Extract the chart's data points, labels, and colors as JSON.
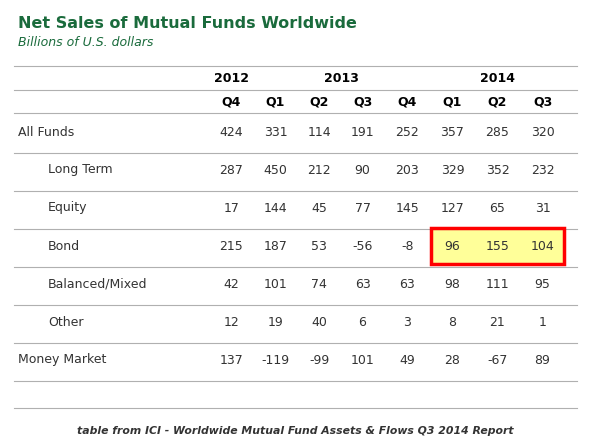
{
  "title": "Net Sales of Mutual Funds Worldwide",
  "subtitle": "Billions of U.S. dollars",
  "title_color": "#1a6b3c",
  "subtitle_color": "#1a6b3c",
  "footer": "table from ICI - Worldwide Mutual Fund Assets & Flows Q3 2014 Report",
  "quarter_headers": [
    "Q4",
    "Q1",
    "Q2",
    "Q3",
    "Q4",
    "Q1",
    "Q2",
    "Q3"
  ],
  "rows": [
    {
      "label": "All Funds",
      "indent": false,
      "values": [
        424,
        331,
        114,
        191,
        252,
        357,
        285,
        320
      ]
    },
    {
      "label": "Long Term",
      "indent": true,
      "values": [
        287,
        450,
        212,
        90,
        203,
        329,
        352,
        232
      ]
    },
    {
      "label": "Equity",
      "indent": true,
      "values": [
        17,
        144,
        45,
        77,
        145,
        127,
        65,
        31
      ]
    },
    {
      "label": "Bond",
      "indent": true,
      "values": [
        215,
        187,
        53,
        -56,
        -8,
        96,
        155,
        104
      ],
      "highlight_cols": [
        5,
        6,
        7
      ]
    },
    {
      "label": "Balanced/Mixed",
      "indent": true,
      "values": [
        42,
        101,
        74,
        63,
        63,
        98,
        111,
        95
      ]
    },
    {
      "label": "Other",
      "indent": true,
      "values": [
        12,
        19,
        40,
        6,
        3,
        8,
        21,
        1
      ]
    },
    {
      "label": "Money Market",
      "indent": false,
      "values": [
        137,
        -119,
        -99,
        101,
        49,
        28,
        -67,
        89
      ]
    }
  ],
  "highlight_color": "#ffff99",
  "highlight_border_color": "#ff0000",
  "background_color": "#ffffff",
  "line_color": "#b0b0b0",
  "text_color": "#333333",
  "header_text_color": "#000000",
  "title_fontsize": 11.5,
  "subtitle_fontsize": 9,
  "data_fontsize": 9,
  "footer_fontsize": 7.8
}
